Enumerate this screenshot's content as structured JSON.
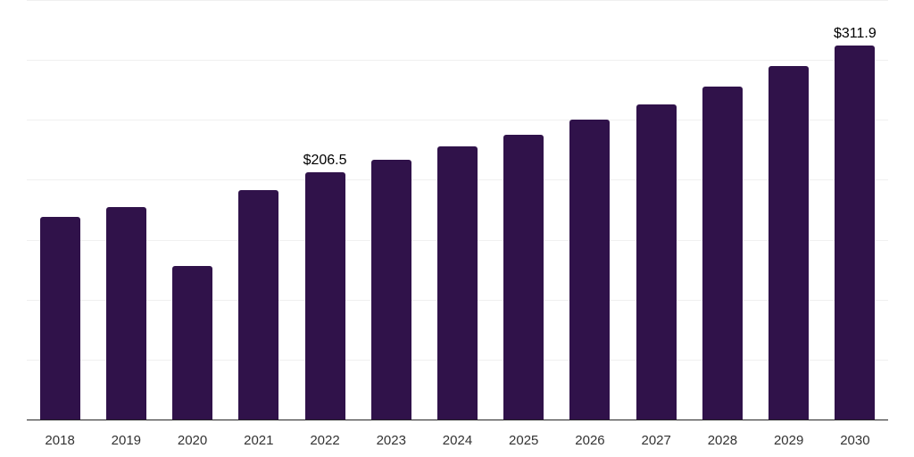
{
  "chart_data": {
    "type": "bar",
    "title": "",
    "xlabel": "",
    "ylabel": "",
    "categories": [
      "2018",
      "2019",
      "2020",
      "2021",
      "2022",
      "2023",
      "2024",
      "2025",
      "2026",
      "2027",
      "2028",
      "2029",
      "2030"
    ],
    "values": [
      169.2,
      177.4,
      128.0,
      191.7,
      206.5,
      216.5,
      227.6,
      237.3,
      249.9,
      262.8,
      277.7,
      294.8,
      311.9
    ],
    "data_labels": [
      {
        "category": "2022",
        "text": "$206.5"
      },
      {
        "category": "2030",
        "text": "$311.9"
      }
    ],
    "ylim": [
      0,
      350
    ],
    "gridline_step": 50,
    "grid": true,
    "y_axis_tick_labels_visible": false,
    "legend": "none"
  },
  "style": {
    "bar_color": "#30124A",
    "gridline_color": "#F0F0F0",
    "axis_color": "#262626",
    "tick_label_color": "#333333",
    "data_label_color": "#000000",
    "background": "#FFFFFF"
  }
}
